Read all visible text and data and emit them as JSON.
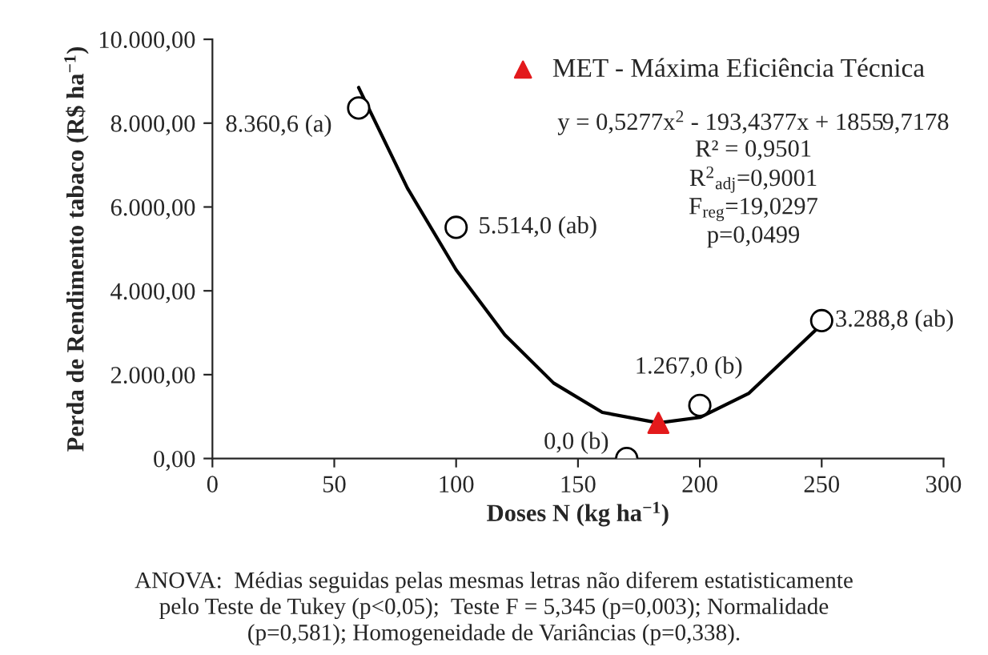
{
  "chart_data": {
    "type": "scatter",
    "xlabel": "Doses N (kg ha$^{−1}$)",
    "ylabel": "Perda de Rendimento tabaco (R$ ha$^{−1}$)",
    "xlim": [
      0,
      300
    ],
    "xticks": [
      0,
      50,
      100,
      150,
      200,
      250,
      300
    ],
    "ylim": [
      0,
      10000
    ],
    "yticks": [
      {
        "value": 0,
        "label": "0,00"
      },
      {
        "value": 2000,
        "label": "2.000,00"
      },
      {
        "value": 4000,
        "label": "4.000,00"
      },
      {
        "value": 6000,
        "label": "6.000,00"
      },
      {
        "value": 8000,
        "label": "8.000,00"
      },
      {
        "value": 10000,
        "label": "10.000,00"
      }
    ],
    "grid": false,
    "legend": "top right",
    "series": [
      {
        "marker": "circle",
        "color": "#000000",
        "x": [
          60,
          100,
          170,
          200,
          250
        ],
        "values": [
          8360.6,
          5514.0,
          0.0,
          1267.0,
          3288.8
        ],
        "value_labels": [
          "8.360,6 (a)",
          "5.514,0 (ab)",
          "0,0 (b)",
          "1.267,0 (b)",
          "3.288,8 (ab)"
        ]
      },
      {
        "type": "line",
        "marker": "none",
        "line_style": "solid",
        "color": "#000000",
        "x": [
          60,
          80,
          100,
          120,
          140,
          160,
          183,
          200,
          220,
          250
        ],
        "values": [
          8850,
          6450,
          4500,
          2950,
          1800,
          1100,
          850,
          980,
          1550,
          3200
        ]
      },
      {
        "type": "scatter",
        "marker": "triangle",
        "name": "MET - Máxima Eficiência Técnica",
        "color": "#e31a1c",
        "x": [
          183
        ],
        "values": [
          850
        ]
      }
    ],
    "annotations": [
      "y = 0,5277x$^{2}$ - 193,4377x + 18559,7178\nR² = 0,9501\nR$^{2}$$_{adj}$=0,9001\nF$_{reg}$=19,0297\np=0,0499",
      "ANOVA:  Médias seguidas pelas mesmas letras não diferem estatisticamente\npelo Teste de Tukey (p<0,05);  Teste F = 5,345 (p=0,003); Normalidade\n(p=0,581); Homogeneidade de Variâncias (p=0,338)."
    ]
  }
}
